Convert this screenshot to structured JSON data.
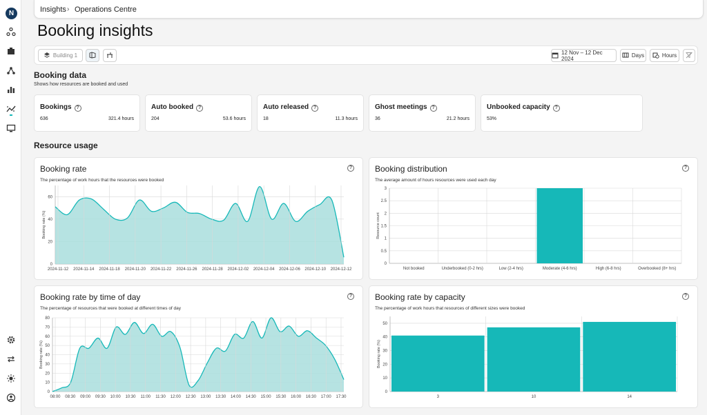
{
  "app": {
    "logo_letter": "N"
  },
  "breadcrumb": {
    "items": [
      "Insights",
      "Operations Centre"
    ],
    "separator": "›"
  },
  "page": {
    "title": "Booking insights"
  },
  "toolbar": {
    "building_label": "Building 1",
    "date_range": "12 Nov – 12 Dec 2024",
    "days_label": "Days",
    "hours_label": "Hours"
  },
  "booking_data": {
    "title": "Booking data",
    "subtitle": "Shows how resources are booked and used",
    "stats": [
      {
        "label": "Bookings",
        "value": "636",
        "hours": "321.4 hours"
      },
      {
        "label": "Auto booked",
        "value": "204",
        "hours": "53.6 hours"
      },
      {
        "label": "Auto released",
        "value": "18",
        "hours": "11.3 hours"
      },
      {
        "label": "Ghost meetings",
        "value": "36",
        "hours": "21.2 hours"
      },
      {
        "label": "Unbooked capacity",
        "value": "53%",
        "hours": ""
      }
    ],
    "help_glyph": "?"
  },
  "resource_usage": {
    "title": "Resource usage"
  },
  "colors": {
    "accent": "#16b8b8",
    "fill": "#a9dedd",
    "nav": "#163a5f"
  },
  "chart_data": [
    {
      "id": "booking-rate",
      "type": "area",
      "title": "Booking rate",
      "subtitle": "The percentage of work hours that the resources were booked",
      "ylabel": "Booking rate (%)",
      "ylim": [
        0,
        70
      ],
      "yticks": [
        0,
        20,
        40,
        60
      ],
      "tick_labels": [
        "2024-11-12",
        "2024-11-14",
        "2024-11-18",
        "2024-11-20",
        "2024-11-22",
        "2024-11-26",
        "2024-11-28",
        "2024-12-02",
        "2024-12-04",
        "2024-12-06",
        "2024-12-10",
        "2024-12-12"
      ],
      "values": [
        51,
        44,
        57,
        58,
        49,
        40,
        41,
        57,
        47,
        50,
        55,
        46,
        45,
        40,
        39,
        54,
        38,
        69,
        40,
        54,
        38,
        47,
        53,
        57,
        6
      ]
    },
    {
      "id": "booking-distribution",
      "type": "bar",
      "title": "Booking distribution",
      "subtitle": "The average amount of hours resources were used each day",
      "ylabel": "Resource count",
      "ylim": [
        0,
        3
      ],
      "yticks": [
        0,
        0.5,
        1,
        1.5,
        2,
        2.5,
        3
      ],
      "categories": [
        "Not booked",
        "Underbooked (0-2 hrs)",
        "Low (2-4 hrs)",
        "Moderate (4-6 hrs)",
        "High (6-8 hrs)",
        "Overbooked (8+ hrs)"
      ],
      "values": [
        0,
        0,
        0,
        3,
        0,
        0
      ]
    },
    {
      "id": "booking-rate-time-of-day",
      "type": "area",
      "title": "Booking rate by time of day",
      "subtitle": "The percentage of resources that were booked at different times of day",
      "ylabel": "Booking rate (%)",
      "ylim": [
        0,
        80
      ],
      "yticks": [
        0,
        10,
        20,
        30,
        40,
        50,
        60,
        70,
        80
      ],
      "tick_labels": [
        "08:00",
        "08:30",
        "09:00",
        "09:30",
        "10:00",
        "10:30",
        "11:00",
        "11:30",
        "12:00",
        "12:30",
        "13:00",
        "13:30",
        "14:00",
        "14:30",
        "15:00",
        "15:30",
        "16:00",
        "16:30",
        "17:00",
        "17:30"
      ],
      "values": [
        0,
        4,
        10,
        47,
        47,
        58,
        47,
        70,
        62,
        75,
        63,
        73,
        60,
        65,
        48,
        7,
        12,
        31,
        47,
        44,
        62,
        58,
        76,
        58,
        80,
        65,
        71,
        60,
        66,
        58,
        50,
        35,
        13
      ]
    },
    {
      "id": "booking-rate-capacity",
      "type": "bar",
      "title": "Booking rate by capacity",
      "subtitle": "The percentage of work hours that resources of different sizes were booked",
      "ylabel": "Booking rate (%)",
      "ylim": [
        0,
        55
      ],
      "yticks": [
        0,
        10,
        20,
        30,
        40,
        50
      ],
      "categories": [
        "3",
        "10",
        "14"
      ],
      "values": [
        41,
        47,
        51
      ]
    }
  ]
}
